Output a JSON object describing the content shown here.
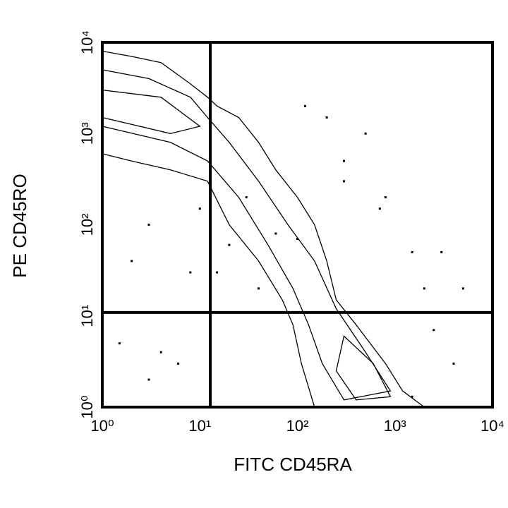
{
  "chart_data": {
    "type": "contour",
    "x_label": "FITC CD45RA",
    "y_label": "PE CD45RO",
    "log_x": true,
    "log_y": true,
    "color": "#000000",
    "xlim": [
      1,
      10000
    ],
    "ylim": [
      1,
      10000
    ],
    "xticks": [
      {
        "value": 1,
        "label": "10⁰"
      },
      {
        "value": 10,
        "label": "10¹"
      },
      {
        "value": 100,
        "label": "10²"
      },
      {
        "value": 1000,
        "label": "10³"
      },
      {
        "value": 10000,
        "label": "10⁴"
      }
    ],
    "yticks": [
      {
        "value": 1,
        "label": "10⁰"
      },
      {
        "value": 10,
        "label": "10¹"
      },
      {
        "value": 100,
        "label": "10²"
      },
      {
        "value": 1000,
        "label": "10³"
      },
      {
        "value": 10000,
        "label": "10⁴"
      }
    ],
    "gates": {
      "x": 12.8,
      "y": 10.9
    },
    "contours": [
      {
        "x": [
          1,
          2,
          4,
          8,
          12,
          15,
          25,
          40,
          60,
          100,
          150,
          200,
          250,
          400,
          800,
          1200,
          2000,
          150,
          110,
          90,
          70,
          40,
          20,
          12,
          5,
          2,
          1
        ],
        "y": [
          8000,
          7000,
          6000,
          3500,
          2500,
          2000,
          1500,
          800,
          400,
          200,
          100,
          40,
          15,
          8,
          3,
          1.5,
          1,
          1,
          3,
          8,
          15,
          40,
          100,
          300,
          400,
          500,
          600
        ]
      },
      {
        "x": [
          1,
          3,
          8,
          12,
          20,
          40,
          80,
          150,
          250,
          500,
          900,
          300,
          180,
          130,
          90,
          50,
          25,
          12,
          5,
          1
        ],
        "y": [
          5000,
          4000,
          2500,
          1500,
          800,
          300,
          100,
          40,
          12,
          4,
          1.5,
          1.2,
          3,
          8,
          20,
          60,
          200,
          500,
          800,
          1200
        ]
      },
      {
        "x": [
          1,
          4,
          10,
          5,
          1
        ],
        "y": [
          3000,
          2500,
          1200,
          1000,
          1500
        ]
      },
      {
        "x": [
          300,
          600,
          900,
          400,
          250
        ],
        "y": [
          6,
          3,
          1.3,
          1.2,
          2.5
        ]
      }
    ],
    "points": {
      "x": [
        200,
        500,
        300,
        800,
        1500,
        3000,
        5000,
        2000,
        30,
        20,
        10,
        3,
        2,
        8,
        15,
        40,
        1.5,
        4,
        6,
        3,
        2500,
        4000,
        1500,
        100,
        60,
        700,
        300,
        120
      ],
      "y": [
        1500,
        1000,
        300,
        200,
        50,
        50,
        20,
        20,
        200,
        60,
        150,
        100,
        40,
        30,
        30,
        20,
        5,
        4,
        3,
        2,
        7,
        3,
        1.3,
        70,
        80,
        150,
        500,
        2000
      ]
    }
  }
}
